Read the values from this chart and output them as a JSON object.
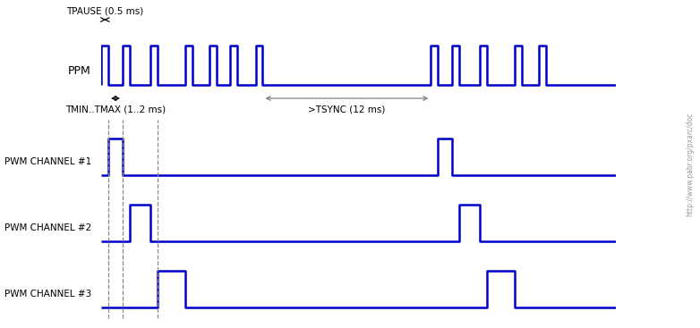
{
  "bg_color": "#ffffff",
  "signal_color": "#0000cc",
  "text_color": "#000000",
  "dashed_color": "#666666",
  "arrow_color": "#000000",
  "line_width": 1.8,
  "watermark": "http://www.pabr.org/pxarc/doc",
  "ppm_label": "PPM",
  "pwm1_label": "PWM CHANNEL #1",
  "pwm2_label": "PWM CHANNEL #2",
  "pwm3_label": "PWM CHANNEL #3",
  "tpause_label": "TPAUSE (0.5 ms)",
  "tminmax_label": "TMIN..TMAX (1..2 ms)",
  "tsync_label": ">TSYNC (12 ms)",
  "tpause": 0.5,
  "tch1": 1.0,
  "tch2": 1.5,
  "tch3": 2.0,
  "tch4": 1.2,
  "tch5": 1.0,
  "tch6": 1.3,
  "tsync": 12.0,
  "tsync2": 5.0,
  "xlim_total": 35.0
}
